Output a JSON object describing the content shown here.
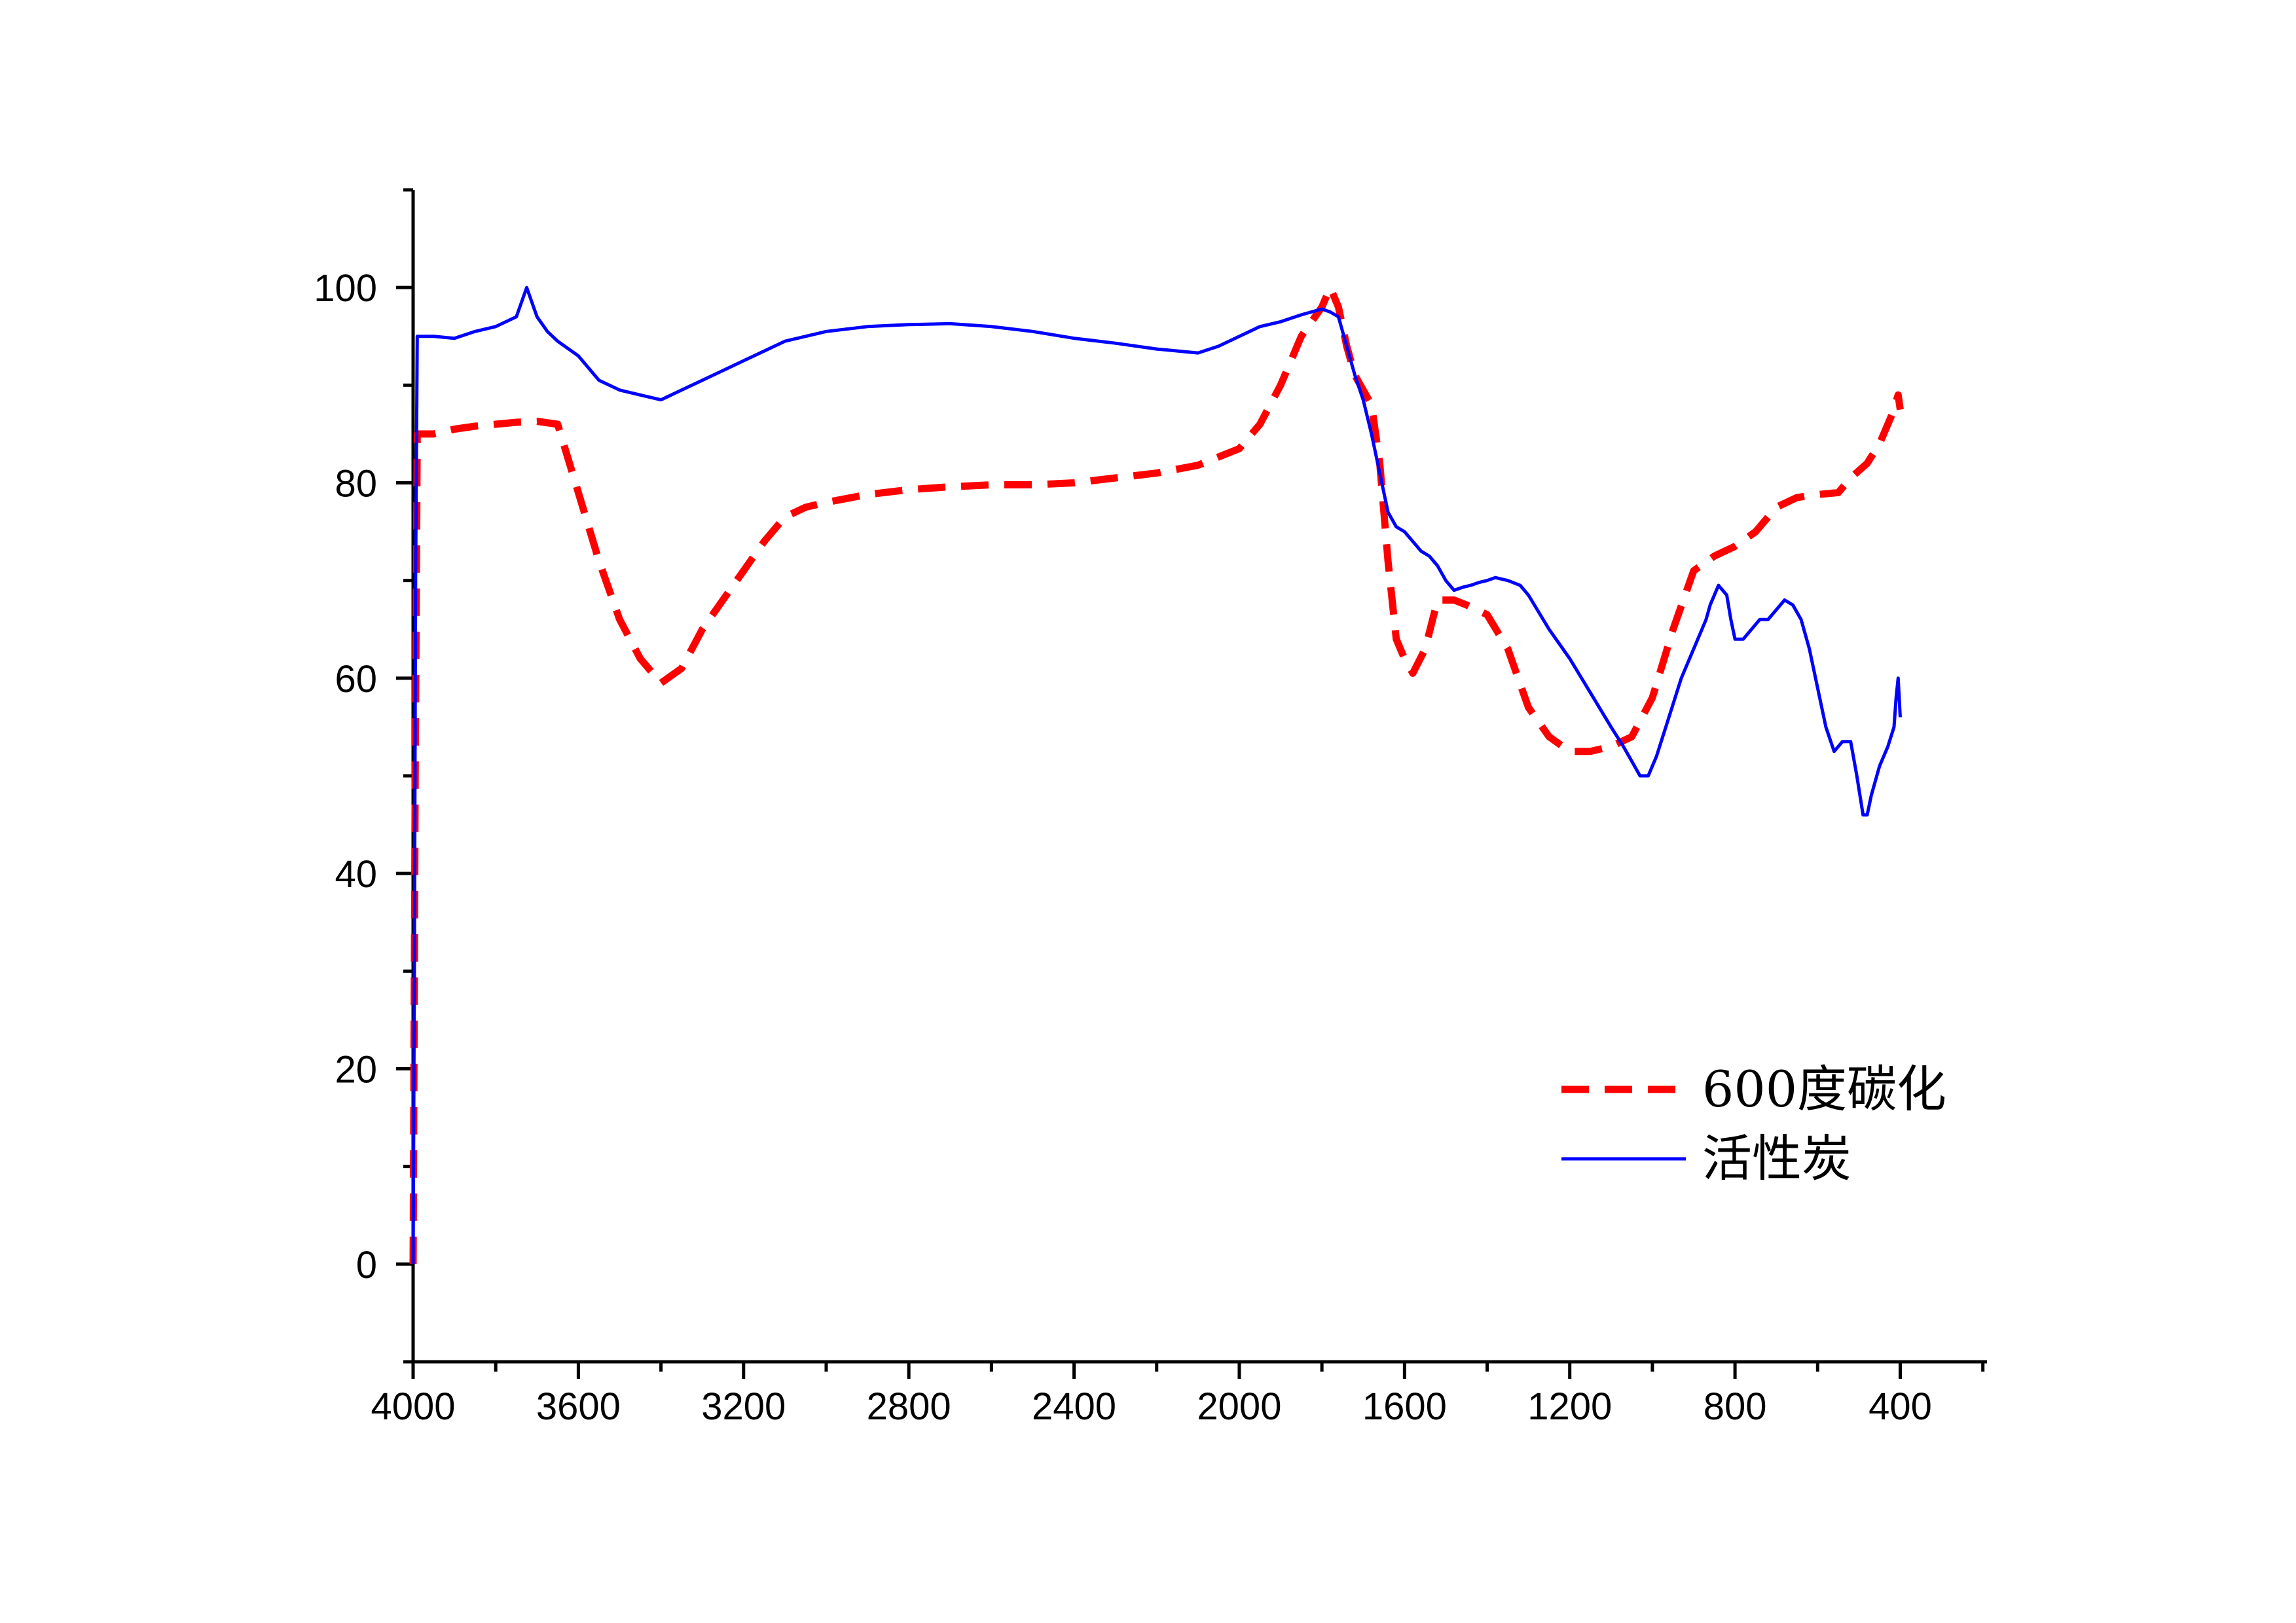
{
  "chart_data": {
    "type": "line",
    "title": "",
    "xlabel": "",
    "ylabel": "",
    "xlim": [
      4000,
      190
    ],
    "ylim": [
      -10,
      110
    ],
    "x_reversed": true,
    "grid": false,
    "legend_position": "bottom-right",
    "x_ticks": [
      4000,
      3600,
      3200,
      2800,
      2400,
      2000,
      1600,
      1200,
      800,
      400
    ],
    "y_ticks": [
      0,
      20,
      40,
      60,
      80,
      100
    ],
    "x_tick_labels": [
      "4000",
      "3600",
      "3200",
      "2800",
      "2400",
      "2000",
      "1600",
      "1200",
      "800",
      "400"
    ],
    "y_tick_labels": [
      "0",
      "20",
      "40",
      "60",
      "80",
      "100"
    ],
    "series": [
      {
        "name": "600度碳化",
        "color": "#ff0000",
        "style": "dashed",
        "points": [
          [
            4000,
            0
          ],
          [
            3998,
            20
          ],
          [
            3995,
            50
          ],
          [
            3992,
            70
          ],
          [
            3990,
            85
          ],
          [
            3950,
            85
          ],
          [
            3900,
            85.5
          ],
          [
            3850,
            85.8
          ],
          [
            3800,
            86
          ],
          [
            3750,
            86.2
          ],
          [
            3700,
            86.3
          ],
          [
            3650,
            86
          ],
          [
            3600,
            79
          ],
          [
            3550,
            72
          ],
          [
            3500,
            66
          ],
          [
            3450,
            62
          ],
          [
            3400,
            59.5
          ],
          [
            3350,
            61
          ],
          [
            3300,
            65
          ],
          [
            3250,
            68
          ],
          [
            3200,
            71
          ],
          [
            3150,
            74
          ],
          [
            3100,
            76.5
          ],
          [
            3050,
            77.5
          ],
          [
            3000,
            78
          ],
          [
            2900,
            78.8
          ],
          [
            2800,
            79.3
          ],
          [
            2700,
            79.6
          ],
          [
            2600,
            79.8
          ],
          [
            2500,
            79.8
          ],
          [
            2400,
            80
          ],
          [
            2300,
            80.5
          ],
          [
            2200,
            81
          ],
          [
            2100,
            81.8
          ],
          [
            2000,
            83.5
          ],
          [
            1950,
            86
          ],
          [
            1900,
            90
          ],
          [
            1850,
            95
          ],
          [
            1800,
            98
          ],
          [
            1780,
            100
          ],
          [
            1760,
            98
          ],
          [
            1740,
            94
          ],
          [
            1720,
            91
          ],
          [
            1700,
            89.5
          ],
          [
            1680,
            88
          ],
          [
            1660,
            82
          ],
          [
            1640,
            72
          ],
          [
            1620,
            64
          ],
          [
            1600,
            62
          ],
          [
            1580,
            60.5
          ],
          [
            1550,
            63
          ],
          [
            1520,
            68
          ],
          [
            1480,
            68
          ],
          [
            1450,
            67.5
          ],
          [
            1400,
            66.5
          ],
          [
            1350,
            63
          ],
          [
            1300,
            57
          ],
          [
            1250,
            54
          ],
          [
            1200,
            52.5
          ],
          [
            1150,
            52.5
          ],
          [
            1100,
            53
          ],
          [
            1050,
            54
          ],
          [
            1000,
            58
          ],
          [
            950,
            65
          ],
          [
            900,
            71
          ],
          [
            850,
            72.5
          ],
          [
            800,
            73.5
          ],
          [
            750,
            75
          ],
          [
            700,
            77.5
          ],
          [
            650,
            78.5
          ],
          [
            600,
            78.8
          ],
          [
            550,
            79
          ],
          [
            520,
            80.5
          ],
          [
            480,
            82
          ],
          [
            450,
            84
          ],
          [
            420,
            87
          ],
          [
            405,
            89
          ],
          [
            400,
            87.5
          ]
        ]
      },
      {
        "name": "活性炭",
        "color": "#0000ff",
        "style": "solid",
        "points": [
          [
            4000,
            0
          ],
          [
            3997,
            30
          ],
          [
            3994,
            70
          ],
          [
            3990,
            95
          ],
          [
            3950,
            95
          ],
          [
            3900,
            94.8
          ],
          [
            3850,
            95.5
          ],
          [
            3800,
            96
          ],
          [
            3750,
            97
          ],
          [
            3725,
            100
          ],
          [
            3700,
            97
          ],
          [
            3675,
            95.5
          ],
          [
            3650,
            94.5
          ],
          [
            3600,
            93
          ],
          [
            3550,
            90.5
          ],
          [
            3500,
            89.5
          ],
          [
            3450,
            89
          ],
          [
            3400,
            88.5
          ],
          [
            3350,
            89.5
          ],
          [
            3300,
            90.5
          ],
          [
            3250,
            91.5
          ],
          [
            3200,
            92.5
          ],
          [
            3100,
            94.5
          ],
          [
            3000,
            95.5
          ],
          [
            2900,
            96
          ],
          [
            2800,
            96.2
          ],
          [
            2700,
            96.3
          ],
          [
            2600,
            96
          ],
          [
            2500,
            95.5
          ],
          [
            2400,
            94.8
          ],
          [
            2300,
            94.3
          ],
          [
            2200,
            93.7
          ],
          [
            2100,
            93.3
          ],
          [
            2050,
            94
          ],
          [
            2000,
            95
          ],
          [
            1950,
            96
          ],
          [
            1900,
            96.5
          ],
          [
            1850,
            97.2
          ],
          [
            1800,
            97.8
          ],
          [
            1780,
            97.5
          ],
          [
            1760,
            97
          ],
          [
            1740,
            94
          ],
          [
            1720,
            91
          ],
          [
            1700,
            88.5
          ],
          [
            1680,
            85
          ],
          [
            1660,
            81
          ],
          [
            1640,
            77
          ],
          [
            1620,
            75.5
          ],
          [
            1600,
            75
          ],
          [
            1580,
            74
          ],
          [
            1560,
            73
          ],
          [
            1540,
            72.5
          ],
          [
            1520,
            71.5
          ],
          [
            1500,
            70
          ],
          [
            1480,
            69
          ],
          [
            1460,
            69.3
          ],
          [
            1440,
            69.5
          ],
          [
            1420,
            69.8
          ],
          [
            1400,
            70
          ],
          [
            1380,
            70.3
          ],
          [
            1350,
            70
          ],
          [
            1320,
            69.5
          ],
          [
            1300,
            68.5
          ],
          [
            1250,
            65
          ],
          [
            1200,
            62
          ],
          [
            1150,
            58.5
          ],
          [
            1100,
            55
          ],
          [
            1070,
            53
          ],
          [
            1050,
            51.5
          ],
          [
            1030,
            50
          ],
          [
            1010,
            50
          ],
          [
            990,
            52
          ],
          [
            960,
            56
          ],
          [
            930,
            60
          ],
          [
            900,
            63
          ],
          [
            880,
            65
          ],
          [
            870,
            66
          ],
          [
            860,
            67.5
          ],
          [
            840,
            69.5
          ],
          [
            820,
            68.5
          ],
          [
            810,
            66
          ],
          [
            800,
            64
          ],
          [
            780,
            64
          ],
          [
            760,
            65
          ],
          [
            740,
            66
          ],
          [
            720,
            66
          ],
          [
            700,
            67
          ],
          [
            680,
            68
          ],
          [
            660,
            67.5
          ],
          [
            640,
            66
          ],
          [
            620,
            63
          ],
          [
            600,
            59
          ],
          [
            580,
            55
          ],
          [
            560,
            52.5
          ],
          [
            540,
            53.5
          ],
          [
            520,
            53.5
          ],
          [
            505,
            50
          ],
          [
            490,
            46
          ],
          [
            480,
            46
          ],
          [
            470,
            48
          ],
          [
            450,
            51
          ],
          [
            430,
            53
          ],
          [
            415,
            55
          ],
          [
            410,
            58
          ],
          [
            405,
            60
          ],
          [
            400,
            56
          ]
        ]
      }
    ]
  }
}
